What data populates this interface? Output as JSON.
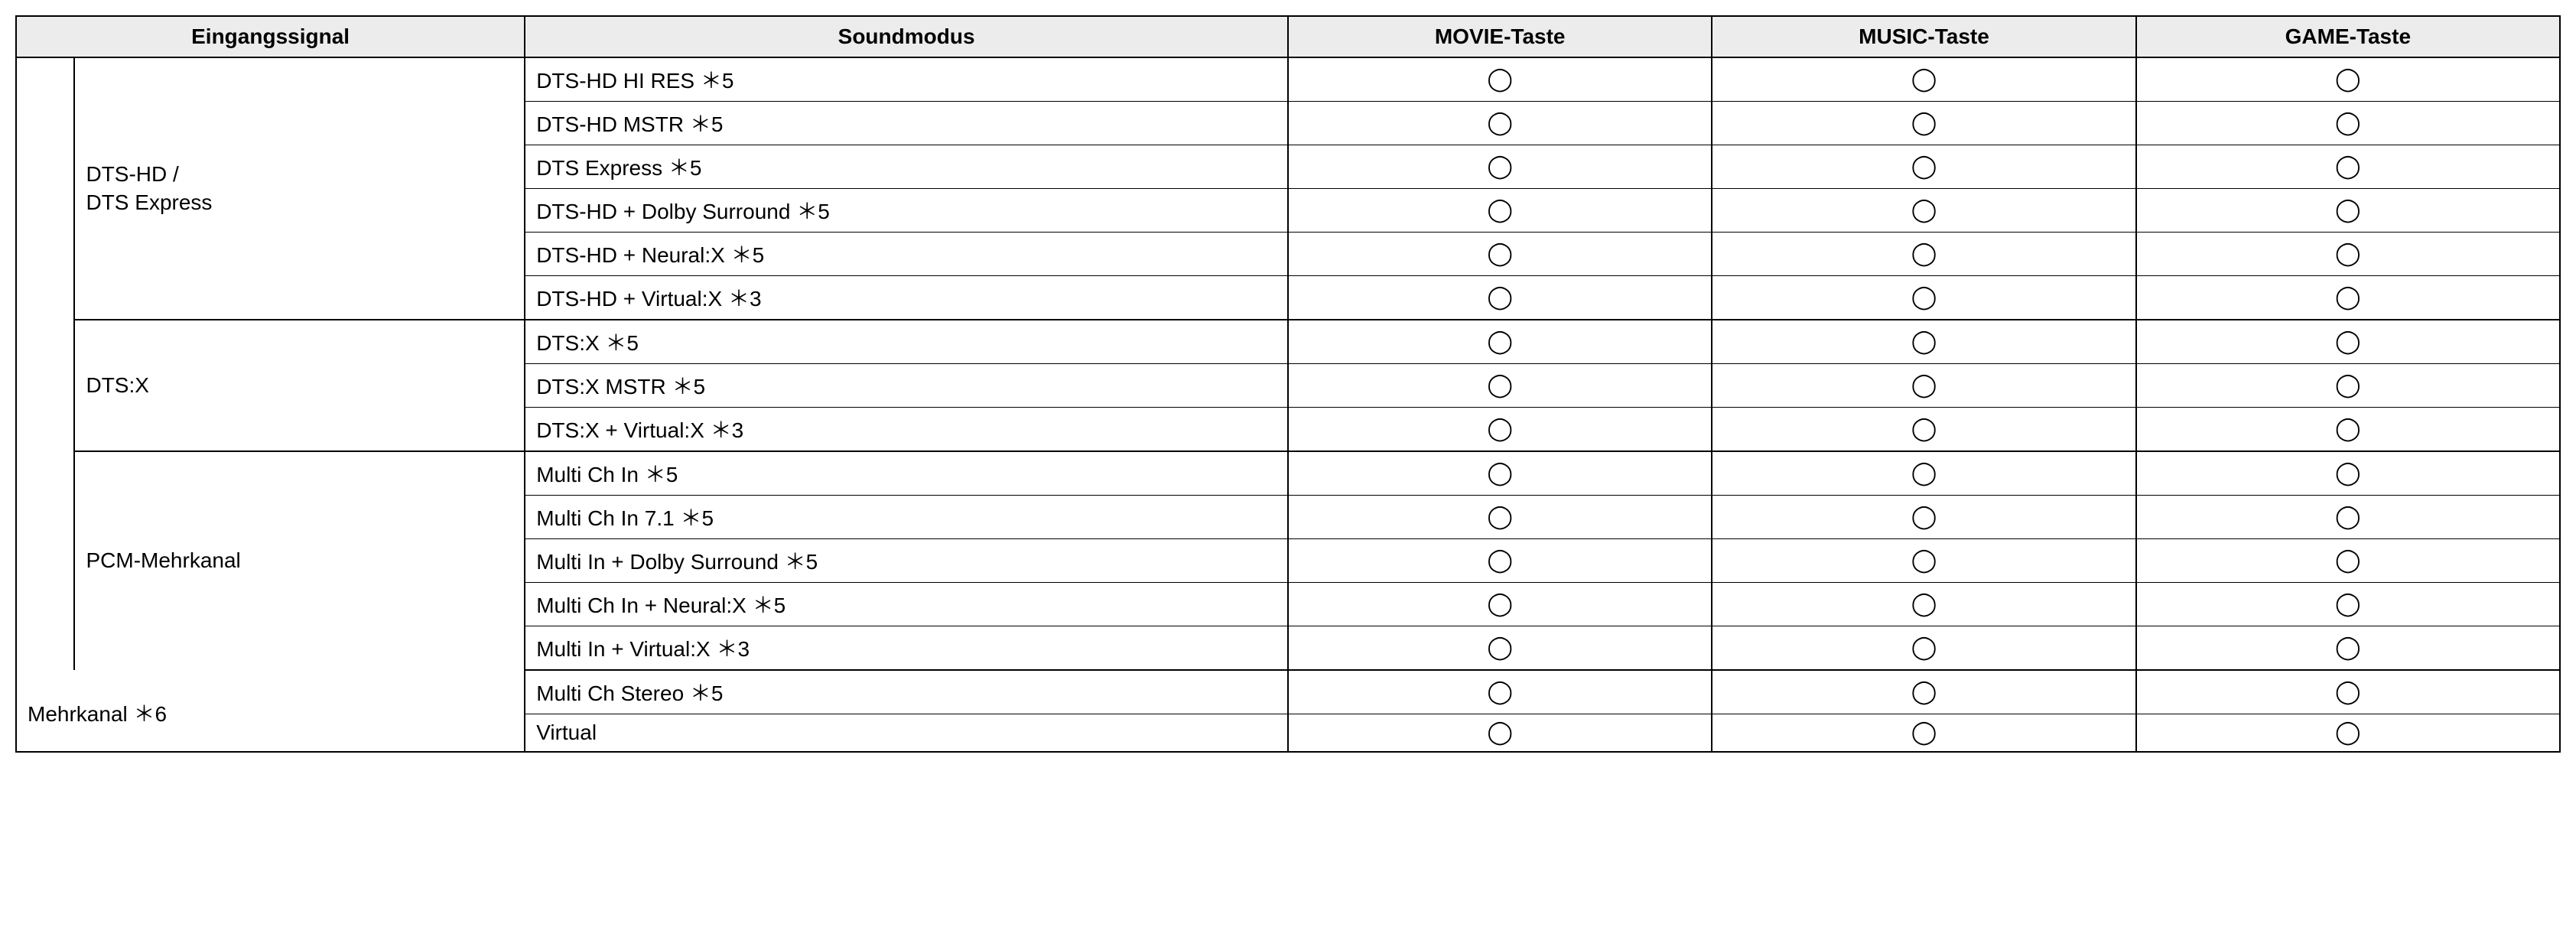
{
  "columns": {
    "signal": "Eingangssignal",
    "mode": "Soundmodus",
    "movie": "MOVIE-Taste",
    "music": "MUSIC-Taste",
    "game": "GAME-Taste"
  },
  "col_widths": {
    "outer": "2.3%",
    "inner": "17.7%",
    "mode": "30%",
    "mark": "16.666%"
  },
  "mark_glyph": "◯",
  "outer_label": "Mehrkanal ＊6",
  "groups": [
    {
      "signal": "DTS-HD /\nDTS Express",
      "rows": [
        {
          "mode": "DTS-HD HI RES ＊5",
          "movie": true,
          "music": true,
          "game": true
        },
        {
          "mode": "DTS-HD MSTR ＊5",
          "movie": true,
          "music": true,
          "game": true
        },
        {
          "mode": "DTS Express ＊5",
          "movie": true,
          "music": true,
          "game": true
        },
        {
          "mode": "DTS-HD + Dolby Surround ＊5",
          "movie": true,
          "music": true,
          "game": true
        },
        {
          "mode": "DTS-HD + Neural:X ＊5",
          "movie": true,
          "music": true,
          "game": true
        },
        {
          "mode": "DTS-HD + Virtual:X ＊3",
          "movie": true,
          "music": true,
          "game": true
        }
      ]
    },
    {
      "signal": "DTS:X",
      "rows": [
        {
          "mode": "DTS:X ＊5",
          "movie": true,
          "music": true,
          "game": true
        },
        {
          "mode": "DTS:X MSTR ＊5",
          "movie": true,
          "music": true,
          "game": true
        },
        {
          "mode": "DTS:X + Virtual:X ＊3",
          "movie": true,
          "music": true,
          "game": true
        }
      ]
    },
    {
      "signal": "PCM-Mehrkanal",
      "rows": [
        {
          "mode": "Multi Ch In  ＊5",
          "movie": true,
          "music": true,
          "game": true
        },
        {
          "mode": "Multi Ch In 7.1  ＊5",
          "movie": true,
          "music": true,
          "game": true
        },
        {
          "mode": "Multi In + Dolby Surround  ＊5",
          "movie": true,
          "music": true,
          "game": true
        },
        {
          "mode": "Multi Ch In + Neural:X  ＊5",
          "movie": true,
          "music": true,
          "game": true
        },
        {
          "mode": "Multi In + Virtual:X  ＊3",
          "movie": true,
          "music": true,
          "game": true
        }
      ]
    }
  ],
  "tail_rows": [
    {
      "mode": "Multi Ch Stereo  ＊5",
      "movie": true,
      "music": true,
      "game": true
    },
    {
      "mode": "Virtual",
      "movie": true,
      "music": true,
      "game": true
    }
  ],
  "colors": {
    "header_bg": "#ececec",
    "border": "#000000",
    "text": "#000000",
    "background": "#ffffff"
  },
  "typography": {
    "header_fontsize": 28,
    "cell_fontsize": 28,
    "mark_fontsize": 30,
    "font_family": "Arial, Helvetica, sans-serif",
    "header_weight": "bold"
  }
}
